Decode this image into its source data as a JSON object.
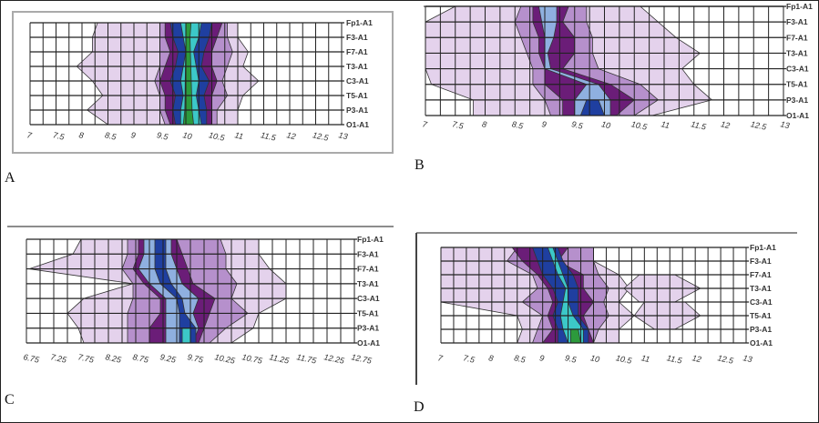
{
  "chart_data": [
    {
      "panel": "A",
      "type": "heatmap",
      "x_ticks": [
        "7",
        "7.5",
        "8",
        "8.5",
        "9",
        "9.5",
        "10",
        "10.5",
        "11",
        "11.5",
        "12",
        "12.5",
        "13"
      ],
      "xlim": [
        7,
        13
      ],
      "channels": [
        "Fp1-A1",
        "F3-A1",
        "F7-A1",
        "T3-A1",
        "C3-A1",
        "T5-A1",
        "P3-A1",
        "O1-A1"
      ],
      "grid": true,
      "levels": [
        {
          "color": "#e4d2ec",
          "ranges": [
            [
              8.3,
              11
            ],
            [
              8.2,
              11
            ],
            [
              8.2,
              11.2
            ],
            [
              7.9,
              11.1
            ],
            [
              8.2,
              11.4
            ],
            [
              8.4,
              11.1
            ],
            [
              8.1,
              11
            ],
            [
              8.5,
              11
            ]
          ]
        },
        {
          "color": "#b690cc",
          "ranges": [
            [
              9.5,
              10.8
            ],
            [
              9.5,
              10.8
            ],
            [
              9.5,
              10.9
            ],
            [
              9.5,
              10.8
            ],
            [
              9.4,
              10.7
            ],
            [
              9.5,
              10.8
            ],
            [
              9.5,
              10.6
            ],
            [
              9.6,
              10.6
            ]
          ]
        },
        {
          "color": "#6b1d78",
          "ranges": [
            [
              9.6,
              10.7
            ],
            [
              9.6,
              10.6
            ],
            [
              9.7,
              10.5
            ],
            [
              9.6,
              10.5
            ],
            [
              9.5,
              10.6
            ],
            [
              9.6,
              10.5
            ],
            [
              9.6,
              10.5
            ],
            [
              9.7,
              10.5
            ]
          ]
        },
        {
          "color": "#1f3fa0",
          "ranges": [
            [
              9.7,
              10.5
            ],
            [
              9.75,
              10.45
            ],
            [
              9.85,
              10.35
            ],
            [
              9.8,
              10.3
            ],
            [
              9.7,
              10.45
            ],
            [
              9.8,
              10.35
            ],
            [
              9.75,
              10.4
            ],
            [
              9.8,
              10.4
            ]
          ]
        },
        {
          "color": "#3cc8c8",
          "ranges": [
            [
              9.9,
              10.3
            ],
            [
              9.95,
              10.25
            ],
            [
              10,
              10.15
            ],
            [
              9.95,
              10.2
            ],
            [
              9.9,
              10.25
            ],
            [
              9.95,
              10.2
            ],
            [
              9.9,
              10.25
            ],
            [
              9.9,
              10.3
            ]
          ]
        },
        {
          "color": "#2c9a3c",
          "ranges": [
            [
              10,
              10.1
            ],
            [
              10,
              10.08
            ],
            null,
            null,
            null,
            null,
            [
              9.98,
              10.12
            ],
            [
              9.95,
              10.15
            ]
          ]
        }
      ]
    },
    {
      "panel": "B",
      "type": "heatmap",
      "x_ticks": [
        "7",
        "7.5",
        "8",
        "8.5",
        "9",
        "9.5",
        "10",
        "10.5",
        "11",
        "11.5",
        "12",
        "12.5",
        "13"
      ],
      "xlim": [
        7,
        13
      ],
      "channels": [
        "Fp1-A1",
        "F3-A1",
        "F7-A1",
        "T3-A1",
        "C3-A1",
        "T5-A1",
        "P3-A1",
        "O1-A1"
      ],
      "grid": true,
      "levels": [
        {
          "color": "#e4d2ec",
          "ranges": [
            [
              7.5,
              10.6
            ],
            [
              7,
              10.9
            ],
            [
              7,
              11.2
            ],
            [
              7,
              11.6
            ],
            [
              7,
              11.3
            ],
            [
              7.1,
              11.5
            ],
            [
              7.8,
              11.8
            ],
            [
              7.8,
              10.8
            ]
          ]
        },
        {
          "color": "#b690cc",
          "ranges": [
            [
              8.6,
              9.7
            ],
            [
              8.5,
              9.7
            ],
            [
              8.6,
              9.8
            ],
            [
              8.7,
              9.8
            ],
            [
              8.8,
              9.9
            ],
            [
              8.8,
              10.6
            ],
            [
              9,
              10.9
            ],
            [
              9.1,
              10.5
            ]
          ]
        },
        {
          "color": "#6b1d78",
          "ranges": [
            [
              8.8,
              9.4
            ],
            [
              8.8,
              9.3
            ],
            [
              8.9,
              9.5
            ],
            [
              8.9,
              9.5
            ],
            [
              9,
              9.3
            ],
            [
              9,
              10.1
            ],
            [
              9.3,
              10.5
            ],
            [
              9.3,
              10.2
            ]
          ]
        },
        {
          "color": "#8fb0e0",
          "ranges": [
            [
              8.9,
              9.2
            ],
            [
              8.95,
              9.2
            ],
            [
              9,
              9.15
            ],
            [
              9,
              9.05
            ],
            [
              9,
              9.1
            ],
            [
              9.7,
              9.9
            ],
            [
              9.5,
              10.1
            ],
            [
              9.5,
              10.1
            ]
          ]
        },
        {
          "color": "#1f3fa0",
          "ranges": [
            null,
            null,
            null,
            null,
            null,
            null,
            [
              9.7,
              9.9
            ],
            [
              9.6,
              10
            ]
          ]
        }
      ]
    },
    {
      "panel": "C",
      "type": "heatmap",
      "x_ticks": [
        "6.75",
        "7.25",
        "7.75",
        "8.25",
        "8.75",
        "9.25",
        "9.75",
        "10.25",
        "10.75",
        "11.25",
        "11.75",
        "12.25",
        "12.75"
      ],
      "xlim": [
        6.75,
        12.75
      ],
      "channels": [
        "Fp1-A1",
        "F3-A1",
        "F7-A1",
        "T3-A1",
        "C3-A1",
        "T5-A1",
        "P3-A1",
        "O1-A1"
      ],
      "grid": true,
      "levels": [
        {
          "color": "#e4d2ec",
          "ranges": [
            [
              7.75,
              11
            ],
            [
              7.6,
              11
            ],
            [
              6.8,
              11.2
            ],
            [
              8.7,
              11.5
            ],
            [
              7.8,
              11.5
            ],
            [
              7.5,
              11
            ],
            [
              7.7,
              10.9
            ],
            [
              7.8,
              10.5
            ]
          ]
        },
        {
          "color": "#b690cc",
          "ranges": [
            [
              8.6,
              10.3
            ],
            [
              8.6,
              10.4
            ],
            [
              8.5,
              10.4
            ],
            [
              8.7,
              10.6
            ],
            [
              8.7,
              10.5
            ],
            [
              8.6,
              10.8
            ],
            [
              8.6,
              10.4
            ],
            [
              8.6,
              10.1
            ]
          ]
        },
        {
          "color": "#6b1d78",
          "ranges": [
            [
              8.8,
              9.5
            ],
            [
              8.8,
              9.6
            ],
            [
              8.7,
              9.7
            ],
            [
              8.9,
              9.8
            ],
            [
              9.2,
              10.2
            ],
            [
              9.2,
              10.1
            ],
            [
              9,
              10
            ],
            [
              9,
              9.9
            ]
          ]
        },
        {
          "color": "#8fb0e0",
          "ranges": [
            [
              8.9,
              9.4
            ],
            [
              8.9,
              9.4
            ],
            [
              8.8,
              9.5
            ],
            [
              9,
              9.6
            ],
            [
              9.3,
              9.9
            ],
            [
              9.3,
              9.8
            ],
            [
              9.3,
              9.9
            ],
            [
              9.3,
              9.8
            ]
          ]
        },
        {
          "color": "#1f3fa0",
          "ranges": [
            [
              9.1,
              9.3
            ],
            [
              9.1,
              9.3
            ],
            [
              9.1,
              9.3
            ],
            [
              9.2,
              9.4
            ],
            [
              9.5,
              9.6
            ],
            [
              9.55,
              9.65
            ],
            [
              9.55,
              9.85
            ],
            [
              9.55,
              9.85
            ]
          ]
        },
        {
          "color": "#3cc8c8",
          "ranges": [
            null,
            null,
            null,
            null,
            null,
            null,
            [
              9.6,
              9.75
            ],
            [
              9.6,
              9.75
            ]
          ]
        }
      ]
    },
    {
      "panel": "D",
      "type": "heatmap",
      "x_ticks": [
        "7",
        "7.5",
        "8",
        "8.5",
        "9",
        "9.5",
        "10",
        "10.5",
        "11",
        "11.5",
        "12",
        "12.5",
        "13"
      ],
      "xlim": [
        7,
        13
      ],
      "channels": [
        "Fp1-A1",
        "F3-A1",
        "F7-A1",
        "T3-A1",
        "C3-A1",
        "T5-A1",
        "P3-A1",
        "O1-A1"
      ],
      "grid": true,
      "levels": [
        {
          "color": "#e4d2ec",
          "ranges": [
            [
              7,
              10
            ],
            [
              7,
              10
            ],
            [
              7,
              10.5
            ],
            [
              7,
              10.7
            ],
            [
              7,
              10.5
            ],
            [
              8.5,
              10.8
            ],
            [
              8.6,
              10.5
            ],
            [
              8.5,
              10.5
            ]
          ]
        },
        {
          "color": "#e4d2ec",
          "ranges": [
            null,
            null,
            [
              10.9,
              11.6
            ],
            [
              10.6,
              12.1
            ],
            [
              10.9,
              11.6
            ],
            null,
            null,
            null
          ]
        },
        {
          "color": "#e4d2ec",
          "ranges": [
            null,
            null,
            null,
            null,
            [
              11,
              11.8
            ],
            [
              10.8,
              12.1
            ],
            [
              11.2,
              11.6
            ],
            null
          ]
        },
        {
          "color": "#b690cc",
          "ranges": [
            [
              8.5,
              10
            ],
            [
              8.3,
              10
            ],
            [
              8.8,
              10.1
            ],
            [
              8.9,
              10.3
            ],
            [
              8.6,
              10.2
            ],
            [
              9,
              10.3
            ],
            [
              8.9,
              10.1
            ],
            [
              8.8,
              10
            ]
          ]
        },
        {
          "color": "#6b1d78",
          "ranges": [
            [
              8.4,
              9.5
            ],
            [
              8.6,
              9.3
            ],
            [
              8.9,
              9.8
            ],
            [
              9.1,
              9.8
            ],
            [
              9.2,
              10
            ],
            [
              9.1,
              9.8
            ],
            [
              9.2,
              9.9
            ],
            [
              9,
              10
            ]
          ]
        },
        {
          "color": "#1f3fa0",
          "ranges": [
            [
              8.8,
              9.3
            ],
            [
              8.9,
              9.4
            ],
            [
              9,
              9.6
            ],
            [
              9.2,
              9.7
            ],
            [
              9.3,
              9.7
            ],
            [
              9.2,
              9.7
            ],
            [
              9.3,
              9.9
            ],
            [
              9.3,
              9.9
            ]
          ]
        },
        {
          "color": "#3cc8c8",
          "ranges": [
            [
              9.1,
              9.2
            ],
            [
              9.2,
              9.3
            ],
            [
              9.3,
              9.4
            ],
            [
              9.45,
              9.5
            ],
            [
              9.4,
              9.5
            ],
            [
              9.35,
              9.6
            ],
            [
              9.4,
              9.8
            ],
            [
              9.5,
              9.8
            ]
          ]
        },
        {
          "color": "#2c9a3c",
          "ranges": [
            null,
            null,
            null,
            null,
            null,
            null,
            [
              9.55,
              9.7
            ],
            [
              9.55,
              9.75
            ]
          ]
        }
      ]
    }
  ]
}
